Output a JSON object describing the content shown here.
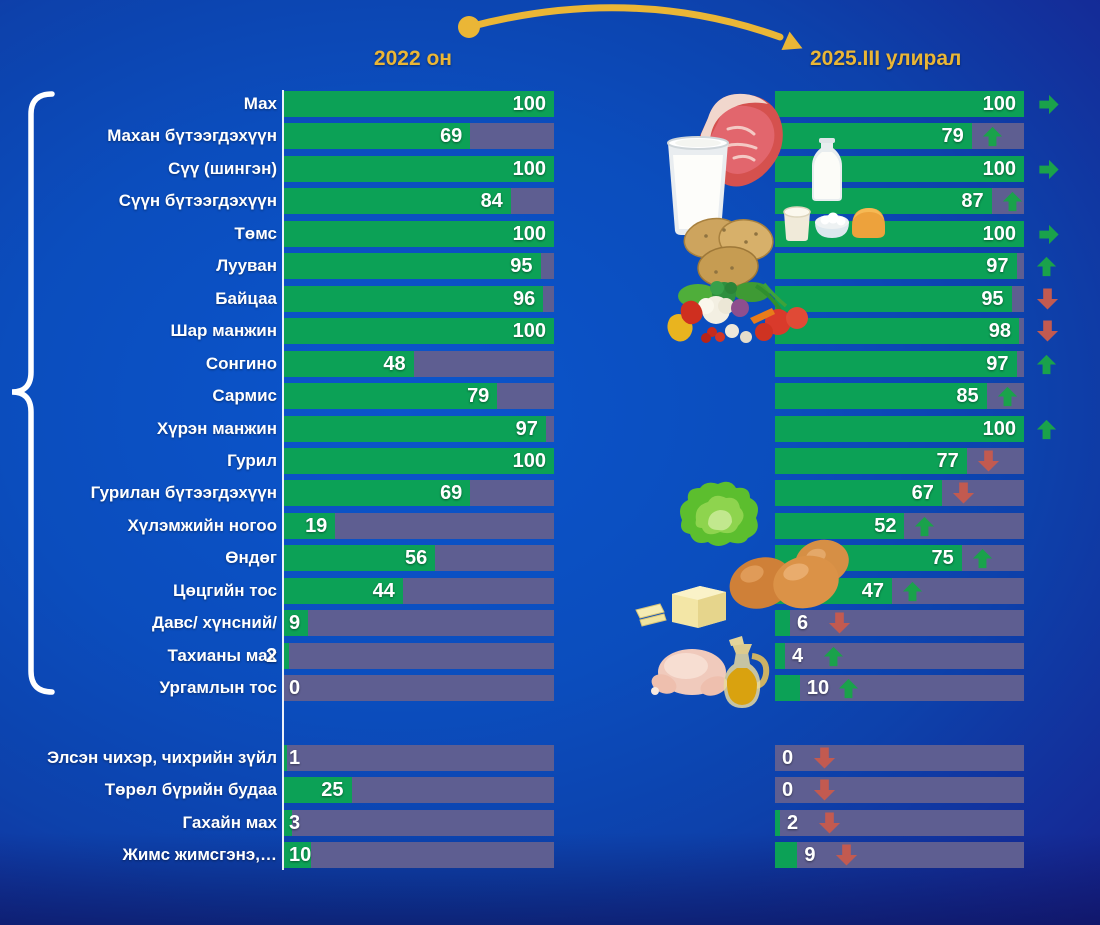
{
  "header": {
    "left_label": "2022 он",
    "right_label": "2025.III улирал"
  },
  "colors": {
    "bar_green": "#0ca156",
    "bar_track": "#5e5e91",
    "trend_up": "#1aa24b",
    "trend_down": "#c25a50",
    "trend_same": "#1aa24b",
    "accent_gold": "#eab636",
    "bg_bright_blue": "#0b4dbd",
    "bg_dark_blue": "#171c86",
    "text_white": "#ffffff"
  },
  "food_icons": [
    "meat-icon",
    "milk-glass-icon",
    "milk-bottle-icon",
    "dairy-icon",
    "potatoes-icon",
    "vegetables-icon",
    "lettuce-icon",
    "eggs-icon",
    "butter-icon",
    "chicken-icon",
    "oil-jug-icon"
  ],
  "chart_data": {
    "type": "bar",
    "orientation": "horizontal",
    "title": "",
    "xlim": [
      0,
      100
    ],
    "legend_position": "top",
    "grid": false,
    "categories": [
      "Мах",
      "Махан бүтээгдэхүүн",
      "Сүү (шингэн)",
      "Сүүн бүтээгдэхүүн",
      "Төмс",
      "Лууван",
      "Байцаа",
      "Шар манжин",
      "Сонгино",
      "Сармис",
      "Хүрэн манжин",
      "Гурил",
      "Гурилан бүтээгдэхүүн",
      "Хүлэмжийн ногоо",
      "Өндөг",
      "Цөцгийн тос",
      "Давс/ хүнсний/",
      "Тахианы мах",
      "Ургамлын тос",
      "Элсэн чихэр, чихрийн зүйл",
      "Төрөл бүрийн будаа",
      "Гахайн мах",
      "Жимс жимсгэнэ,…"
    ],
    "series": [
      {
        "name": "2022 он",
        "values": [
          100,
          69,
          100,
          84,
          100,
          95,
          96,
          100,
          48,
          79,
          97,
          100,
          69,
          19,
          56,
          44,
          9,
          2,
          0,
          1,
          25,
          3,
          10
        ]
      },
      {
        "name": "2025.III улирал",
        "values": [
          100,
          79,
          100,
          87,
          100,
          97,
          95,
          98,
          97,
          85,
          100,
          77,
          67,
          52,
          75,
          47,
          6,
          4,
          10,
          0,
          0,
          2,
          9
        ]
      }
    ],
    "trends": [
      "same",
      "up",
      "same",
      "up",
      "same",
      "up",
      "down",
      "down",
      "up",
      "up",
      "up",
      "down",
      "down",
      "up",
      "up",
      "up",
      "down",
      "up",
      "up",
      "down",
      "down",
      "down",
      "down"
    ],
    "group_break_after_row": 19,
    "bracket_group_rows": [
      0,
      18
    ]
  }
}
